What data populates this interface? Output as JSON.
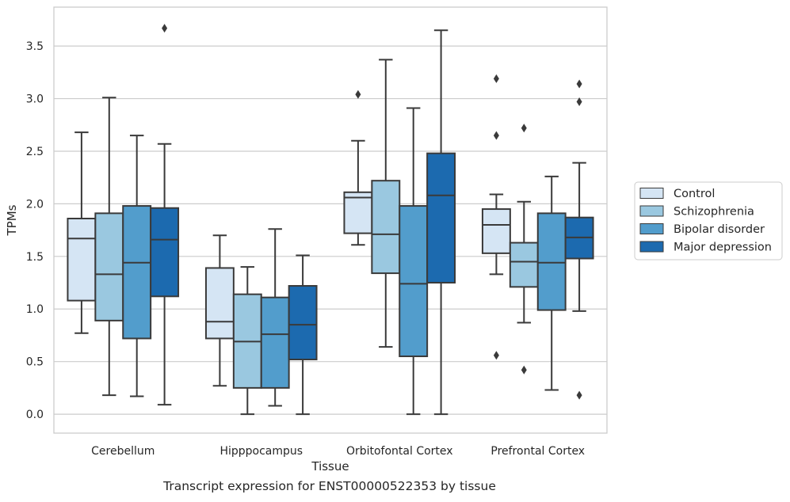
{
  "caption": "Transcript expression for ENST00000522353 by tissue",
  "chart_data": {
    "type": "box",
    "xlabel": "Tissue",
    "ylabel": "TPMs",
    "ylim": [
      -0.18,
      3.87
    ],
    "yticks": [
      "0.0",
      "0.5",
      "1.0",
      "1.5",
      "2.0",
      "2.5",
      "3.0",
      "3.5"
    ],
    "grid": "horizontal",
    "legend_position": "right",
    "categories": [
      "Cerebellum",
      "Hipppocampus",
      "Orbitofontal Cortex",
      "Prefrontal Cortex"
    ],
    "series": [
      {
        "name": "Control",
        "color": "#d5e5f4",
        "boxes": [
          {
            "whislo": 0.77,
            "q1": 1.08,
            "med": 1.67,
            "q3": 1.86,
            "whishi": 2.68,
            "fliers": []
          },
          {
            "whislo": 0.27,
            "q1": 0.72,
            "med": 0.88,
            "q3": 1.39,
            "whishi": 1.7,
            "fliers": []
          },
          {
            "whislo": 1.61,
            "q1": 1.72,
            "med": 2.06,
            "q3": 2.11,
            "whishi": 2.6,
            "fliers": [
              3.04
            ]
          },
          {
            "whislo": 1.33,
            "q1": 1.53,
            "med": 1.8,
            "q3": 1.95,
            "whishi": 2.09,
            "fliers": [
              3.19,
              2.65,
              0.56
            ]
          }
        ]
      },
      {
        "name": "Schizophrenia",
        "color": "#9ac8e0",
        "boxes": [
          {
            "whislo": 0.18,
            "q1": 0.89,
            "med": 1.33,
            "q3": 1.91,
            "whishi": 3.01,
            "fliers": []
          },
          {
            "whislo": 0.0,
            "q1": 0.25,
            "med": 0.69,
            "q3": 1.14,
            "whishi": 1.4,
            "fliers": []
          },
          {
            "whislo": 0.64,
            "q1": 1.34,
            "med": 1.71,
            "q3": 2.22,
            "whishi": 3.37,
            "fliers": []
          },
          {
            "whislo": 0.87,
            "q1": 1.21,
            "med": 1.45,
            "q3": 1.63,
            "whishi": 2.02,
            "fliers": [
              2.72,
              0.42
            ]
          }
        ]
      },
      {
        "name": "Bipolar disorder",
        "color": "#529dcc",
        "boxes": [
          {
            "whislo": 0.17,
            "q1": 0.72,
            "med": 1.44,
            "q3": 1.98,
            "whishi": 2.65,
            "fliers": []
          },
          {
            "whislo": 0.08,
            "q1": 0.25,
            "med": 0.76,
            "q3": 1.11,
            "whishi": 1.76,
            "fliers": []
          },
          {
            "whislo": 0.0,
            "q1": 0.55,
            "med": 1.24,
            "q3": 1.98,
            "whishi": 2.91,
            "fliers": []
          },
          {
            "whislo": 0.23,
            "q1": 0.99,
            "med": 1.44,
            "q3": 1.91,
            "whishi": 2.26,
            "fliers": []
          }
        ]
      },
      {
        "name": "Major depression",
        "color": "#1c6aaf",
        "boxes": [
          {
            "whislo": 0.09,
            "q1": 1.12,
            "med": 1.66,
            "q3": 1.96,
            "whishi": 2.57,
            "fliers": [
              3.67
            ]
          },
          {
            "whislo": 0.0,
            "q1": 0.52,
            "med": 0.85,
            "q3": 1.22,
            "whishi": 1.51,
            "fliers": []
          },
          {
            "whislo": 0.0,
            "q1": 1.25,
            "med": 2.08,
            "q3": 2.48,
            "whishi": 3.65,
            "fliers": []
          },
          {
            "whislo": 0.98,
            "q1": 1.48,
            "med": 1.68,
            "q3": 1.87,
            "whishi": 2.39,
            "fliers": [
              3.14,
              2.97,
              0.18
            ]
          }
        ]
      }
    ]
  }
}
